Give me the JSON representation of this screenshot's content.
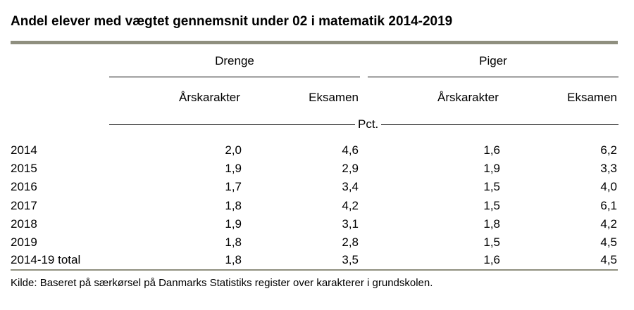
{
  "title": "Andel elever med vægtet gennemsnit under 02 i matematik 2014-2019",
  "groups": {
    "boys": "Drenge",
    "girls": "Piger"
  },
  "columns": {
    "boys_year_grade": "Årskarakter",
    "boys_exam": "Eksamen",
    "girls_year_grade": "Årskarakter",
    "girls_exam": "Eksamen"
  },
  "unit": "Pct.",
  "rows": [
    {
      "label": "2014",
      "values": [
        "2,0",
        "4,6",
        "1,6",
        "6,2"
      ]
    },
    {
      "label": "2015",
      "values": [
        "1,9",
        "2,9",
        "1,9",
        "3,3"
      ]
    },
    {
      "label": "2016",
      "values": [
        "1,7",
        "3,4",
        "1,5",
        "4,0"
      ]
    },
    {
      "label": "2017",
      "values": [
        "1,8",
        "4,2",
        "1,5",
        "6,1"
      ]
    },
    {
      "label": "2018",
      "values": [
        "1,9",
        "3,1",
        "1,8",
        "4,2"
      ]
    },
    {
      "label": "2019",
      "values": [
        "1,8",
        "2,8",
        "1,5",
        "4,5"
      ]
    },
    {
      "label": "2014-19 total",
      "values": [
        "1,8",
        "3,5",
        "1,6",
        "4,5"
      ]
    }
  ],
  "source": "Kilde: Baseret på særkørsel på Danmarks Statistiks register over karakterer i grundskolen.",
  "colors": {
    "rule": "#8f8f7f"
  }
}
